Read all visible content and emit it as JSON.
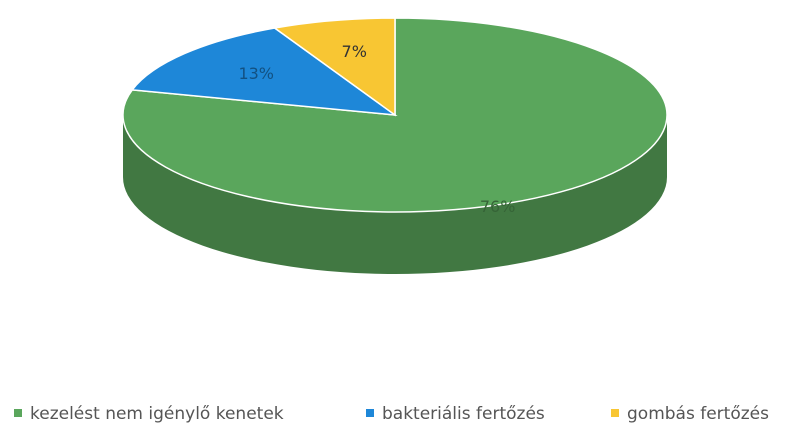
{
  "chart_data": {
    "type": "pie",
    "categories": [
      "kezelést nem igénylő kenetek",
      "bakteriális fertőzés",
      "gombás fertőzés"
    ],
    "values": [
      76,
      13,
      7
    ],
    "value_labels": [
      "76%",
      "13%",
      "7%"
    ],
    "colors": [
      "#5aa65c",
      "#1e87d8",
      "#f8c633"
    ],
    "legend": "bottom"
  }
}
